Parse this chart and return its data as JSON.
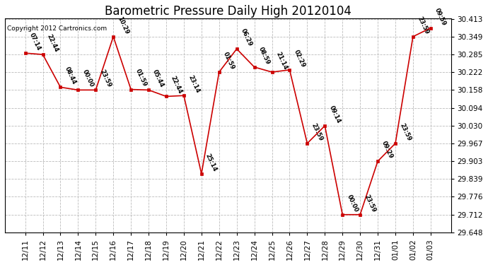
{
  "title": "Barometric Pressure Daily High 20120104",
  "copyright": "Copyright 2012 Cartronics.com",
  "x_labels": [
    "12/11",
    "12/12",
    "12/13",
    "12/14",
    "12/15",
    "12/16",
    "12/17",
    "12/18",
    "12/19",
    "12/20",
    "12/21",
    "12/22",
    "12/23",
    "12/24",
    "12/25",
    "12/26",
    "12/27",
    "12/28",
    "12/29",
    "12/30",
    "12/31",
    "01/01",
    "01/02",
    "01/03"
  ],
  "y_values": [
    30.29,
    30.285,
    30.168,
    30.158,
    30.158,
    30.349,
    30.16,
    30.158,
    30.135,
    30.138,
    29.858,
    30.222,
    30.305,
    30.24,
    30.222,
    30.23,
    29.967,
    30.03,
    29.712,
    29.712,
    29.903,
    29.967,
    30.349,
    30.38
  ],
  "point_labels": [
    "07:14",
    "22:44",
    "08:44",
    "00:00",
    "23:59",
    "10:29",
    "01:59",
    "05:44",
    "22:44",
    "23:14",
    "25:14",
    "01:59",
    "06:29",
    "08:59",
    "21:14",
    "02:29",
    "23:59",
    "09:14",
    "00:00",
    "23:59",
    "09:29",
    "23:59",
    "23:59",
    "09:59"
  ],
  "line_color": "#CC0000",
  "marker_color": "#CC0000",
  "bg_color": "#FFFFFF",
  "grid_color": "#BBBBBB",
  "title_fontsize": 12,
  "tick_fontsize": 7.5,
  "ylim_min": 29.648,
  "ylim_max": 30.413,
  "ytick_values": [
    29.648,
    29.712,
    29.776,
    29.839,
    29.903,
    29.967,
    30.03,
    30.094,
    30.158,
    30.222,
    30.285,
    30.349,
    30.413
  ]
}
